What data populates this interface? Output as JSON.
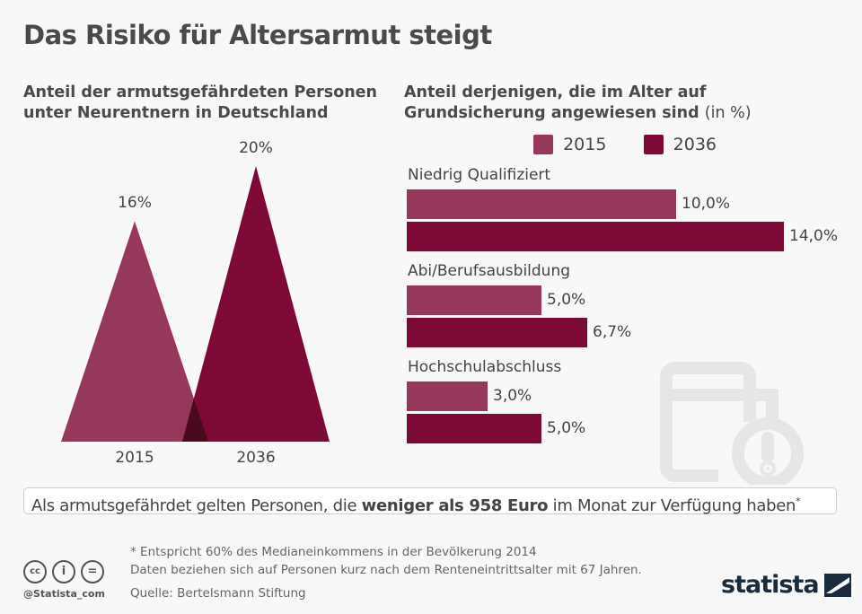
{
  "title": "Das Risiko für Altersarmut steigt",
  "colors": {
    "y2015": "#96385c",
    "y2036": "#7d0a36",
    "overlap": "#4a0a1e"
  },
  "chart_data": [
    {
      "type": "triangle-area",
      "title": "Anteil der armutsgefährdeten Personen unter Neurentnern in Deutschland",
      "categories": [
        "2015",
        "2036"
      ],
      "values": [
        16,
        20
      ],
      "data_labels": [
        "16%",
        "20%"
      ]
    },
    {
      "type": "bar",
      "title": "Anteil derjenigen, die im Alter auf Grundsicherung angewiesen sind",
      "title_unit": "(in %)",
      "categories": [
        "Niedrig Qualifiziert",
        "Abi/Berufsausbildung",
        "Hochschulabschluss"
      ],
      "series": [
        {
          "name": "2015",
          "values": [
            10.0,
            5.0,
            3.0
          ],
          "labels": [
            "10,0%",
            "5,0%",
            "3,0%"
          ]
        },
        {
          "name": "2036",
          "values": [
            14.0,
            6.7,
            5.0
          ],
          "labels": [
            "14,0%",
            "6,7%",
            "5,0%"
          ]
        }
      ],
      "legend": "top"
    }
  ],
  "note": {
    "pre": "Als armutsgefährdet gelten Personen, die ",
    "bold": "weniger als 958 Euro",
    "post": " im Monat zur Verfügung haben",
    "star": "*"
  },
  "footer": {
    "line1": "* Entspricht 60% des Medianeinkommens in der Bevölkerung 2014",
    "line2": "Daten beziehen sich auf Personen kurz nach dem Renteneintrittsalter mit 67 Jahren.",
    "source": "Quelle: Bertelsmann Stiftung",
    "handle": "@Statista_com",
    "brand": "statista"
  },
  "icons": [
    "wallet-warning-icon",
    "cc-icon",
    "by-icon",
    "nd-icon",
    "statista-logo-icon"
  ]
}
